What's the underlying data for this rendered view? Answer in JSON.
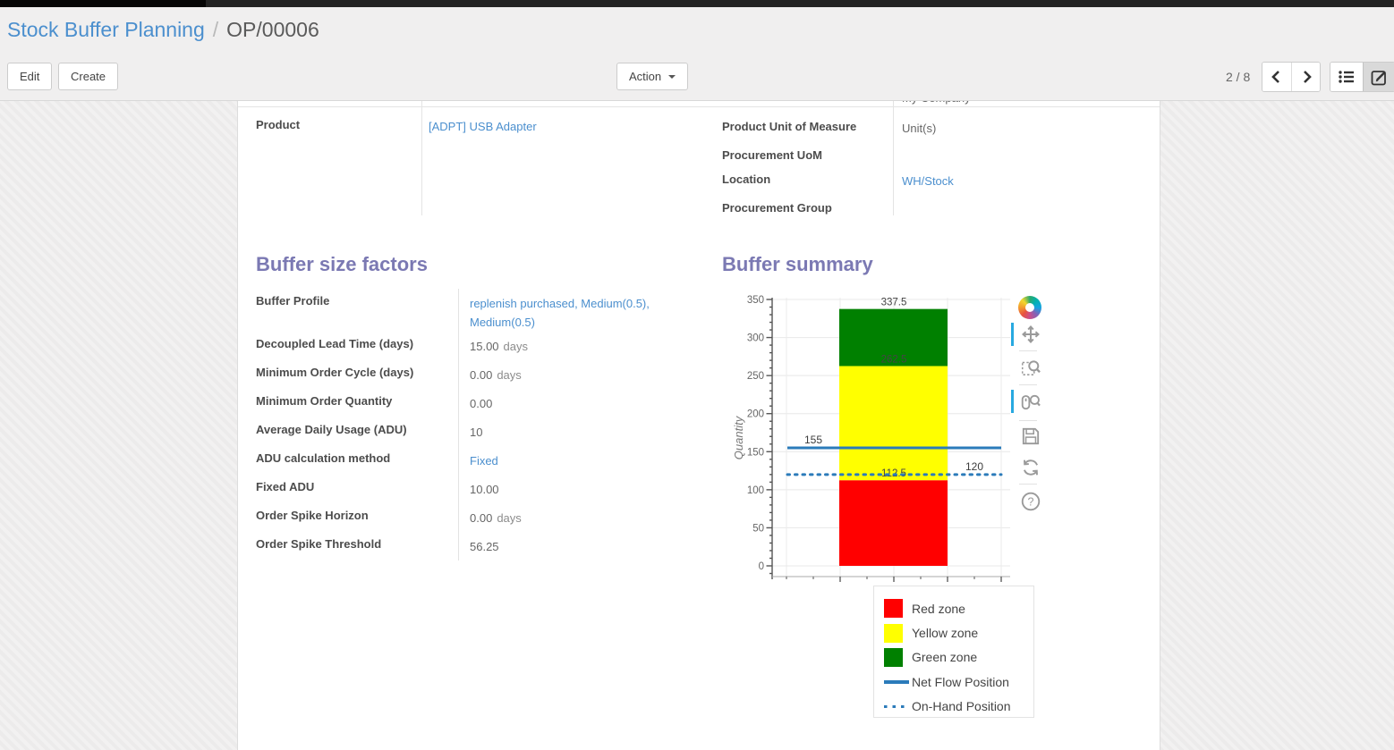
{
  "breadcrumb": {
    "parent": "Stock Buffer Planning",
    "separator": "/",
    "current": "OP/00006"
  },
  "control_panel": {
    "edit_label": "Edit",
    "create_label": "Create",
    "action_label": "Action",
    "pager": "2 / 8"
  },
  "form": {
    "clipped_value": "My Company",
    "product_group": {
      "label": "Product",
      "value": "[ADPT] USB Adapter"
    },
    "right_group": {
      "rows": [
        {
          "label": "Product Unit of Measure",
          "value": "Unit(s)"
        },
        {
          "label": "Procurement UoM",
          "value": ""
        },
        {
          "label": "Location",
          "value": "WH/Stock"
        },
        {
          "label": "Procurement Group",
          "value": ""
        }
      ]
    },
    "factors": {
      "title": "Buffer size factors",
      "rows": [
        {
          "label": "Buffer Profile",
          "value": "replenish purchased, Medium(0.5), Medium(0.5)"
        },
        {
          "label": "Decoupled Lead Time (days)",
          "value": "15.00",
          "unit": "days"
        },
        {
          "label": "Minimum Order Cycle (days)",
          "value": "0.00",
          "unit": "days"
        },
        {
          "label": "Minimum Order Quantity",
          "value": "0.00"
        },
        {
          "label": "Average Daily Usage (ADU)",
          "value": "10"
        },
        {
          "label": "ADU calculation method",
          "value": "Fixed"
        },
        {
          "label": "Fixed ADU",
          "value": "10.00"
        },
        {
          "label": "Order Spike Horizon",
          "value": "0.00",
          "unit": "days"
        },
        {
          "label": "Order Spike Threshold",
          "value": "56.25"
        }
      ]
    },
    "summary": {
      "title": "Buffer summary"
    }
  },
  "chart_data": {
    "type": "bar",
    "title": "Buffer summary",
    "xlabel": "",
    "ylabel": "Quantity",
    "ylim": [
      0,
      350
    ],
    "yticks": [
      0,
      50,
      100,
      150,
      200,
      250,
      300,
      350
    ],
    "grid": true,
    "zones": [
      {
        "name": "Red zone",
        "from": 0,
        "to": 112.5,
        "color": "#ff0000"
      },
      {
        "name": "Yellow zone",
        "from": 112.5,
        "to": 262.5,
        "color": "#ffff00"
      },
      {
        "name": "Green zone",
        "from": 262.5,
        "to": 337.5,
        "color": "#008000"
      }
    ],
    "lines": [
      {
        "name": "Net Flow Position",
        "value": 155,
        "style": "solid",
        "color": "#2b7bba",
        "label_side": "left"
      },
      {
        "name": "On-Hand Position",
        "value": 120,
        "style": "dotted",
        "color": "#2b7bba",
        "label_side": "right"
      }
    ],
    "bar_value_labels": [
      "337.5",
      "262.5",
      "112.5"
    ],
    "legend": [
      "Red zone",
      "Yellow zone",
      "Green zone",
      "Net Flow Position",
      "On-Hand Position"
    ],
    "legend_position": "below-right",
    "toolbar_icons": [
      "bokeh-logo",
      "pan",
      "box-zoom",
      "wheel-zoom",
      "save",
      "reset",
      "help"
    ],
    "active_tools": [
      "pan",
      "wheel-zoom"
    ],
    "active_tool_color": "#28a9e0"
  },
  "ui_colors": {
    "link_blue": "#4b8fce",
    "heading_purple": "#7b79b3",
    "topbar_dark": "#232323"
  }
}
